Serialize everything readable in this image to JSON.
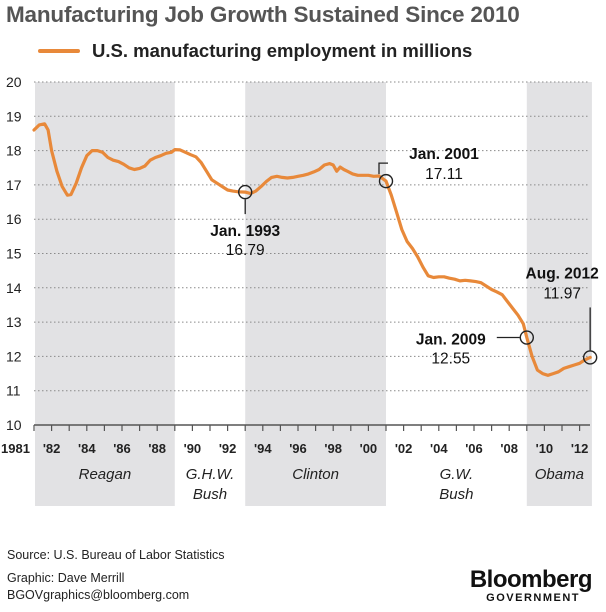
{
  "chart_data": {
    "type": "line",
    "title": "Manufacturing Job Growth Sustained Since 2010",
    "legend": {
      "label": "U.S. manufacturing employment in millions",
      "color": "#e8893a",
      "placement": "top-left"
    },
    "xlabel": "",
    "ylabel": "",
    "ylim": [
      10,
      20
    ],
    "xlim": [
      1981,
      2012.7
    ],
    "yticks": [
      "20",
      "19",
      "18",
      "17",
      "16",
      "15",
      "14",
      "13",
      "12",
      "11",
      "10"
    ],
    "ytick_values": [
      20,
      19,
      18,
      17,
      16,
      15,
      14,
      13,
      12,
      11,
      10
    ],
    "xticks": [
      {
        "year": 1981,
        "label": "1981"
      },
      {
        "year": 1982,
        "label": "'82"
      },
      {
        "year": 1984,
        "label": "'84"
      },
      {
        "year": 1986,
        "label": "'86"
      },
      {
        "year": 1988,
        "label": "'88"
      },
      {
        "year": 1990,
        "label": "'90"
      },
      {
        "year": 1992,
        "label": "'92"
      },
      {
        "year": 1994,
        "label": "'94"
      },
      {
        "year": 1996,
        "label": "'96"
      },
      {
        "year": 1998,
        "label": "'98"
      },
      {
        "year": 2000,
        "label": "'00"
      },
      {
        "year": 2002,
        "label": "'02"
      },
      {
        "year": 2004,
        "label": "'04"
      },
      {
        "year": 2006,
        "label": "'06"
      },
      {
        "year": 2008,
        "label": "'08"
      },
      {
        "year": 2010,
        "label": "'10"
      },
      {
        "year": 2012,
        "label": "'12"
      }
    ],
    "grid": true,
    "presidencies": [
      {
        "name": "Reagan",
        "lines": [
          "Reagan"
        ],
        "start": 1981,
        "end": 1989,
        "shaded": true
      },
      {
        "name": "G.H.W. Bush",
        "lines": [
          "G.H.W.",
          "Bush"
        ],
        "start": 1989,
        "end": 1993,
        "shaded": false
      },
      {
        "name": "Clinton",
        "lines": [
          "Clinton"
        ],
        "start": 1993,
        "end": 2001,
        "shaded": true
      },
      {
        "name": "G.W. Bush",
        "lines": [
          "G.W.",
          "Bush"
        ],
        "start": 2001,
        "end": 2009,
        "shaded": false
      },
      {
        "name": "Obama",
        "lines": [
          "Obama"
        ],
        "start": 2009,
        "end": 2012.7,
        "shaded": true
      }
    ],
    "series": [
      {
        "name": "U.S. manufacturing employment in millions",
        "x": [
          1981.0,
          1981.3,
          1981.6,
          1981.8,
          1982.0,
          1982.3,
          1982.6,
          1982.9,
          1983.1,
          1983.4,
          1983.7,
          1984.0,
          1984.3,
          1984.6,
          1984.9,
          1985.2,
          1985.5,
          1985.8,
          1986.1,
          1986.4,
          1986.7,
          1987.0,
          1987.3,
          1987.6,
          1987.9,
          1988.2,
          1988.5,
          1988.8,
          1989.0,
          1989.3,
          1989.6,
          1989.9,
          1990.2,
          1990.5,
          1990.8,
          1991.1,
          1991.4,
          1991.7,
          1992.0,
          1992.3,
          1992.6,
          1993.0,
          1993.3,
          1993.6,
          1993.9,
          1994.2,
          1994.5,
          1994.8,
          1995.1,
          1995.4,
          1995.7,
          1996.0,
          1996.3,
          1996.6,
          1996.9,
          1997.2,
          1997.5,
          1997.8,
          1998.0,
          1998.2,
          1998.4,
          1998.6,
          1998.8,
          1999.1,
          1999.4,
          1999.7,
          2000.0,
          2000.3,
          2000.6,
          2001.0,
          2001.3,
          2001.6,
          2001.9,
          2002.2,
          2002.5,
          2002.8,
          2003.1,
          2003.4,
          2003.7,
          2004.0,
          2004.3,
          2004.6,
          2004.9,
          2005.2,
          2005.5,
          2005.8,
          2006.1,
          2006.4,
          2006.7,
          2007.0,
          2007.3,
          2007.6,
          2007.9,
          2008.2,
          2008.5,
          2008.8,
          2009.0,
          2009.3,
          2009.6,
          2009.9,
          2010.2,
          2010.5,
          2010.8,
          2011.1,
          2011.4,
          2011.7,
          2012.0,
          2012.3,
          2012.6
        ],
        "values": [
          18.6,
          18.75,
          18.78,
          18.6,
          18.0,
          17.4,
          16.95,
          16.7,
          16.72,
          17.05,
          17.5,
          17.85,
          18.0,
          18.0,
          17.95,
          17.8,
          17.72,
          17.68,
          17.6,
          17.5,
          17.45,
          17.48,
          17.55,
          17.72,
          17.8,
          17.85,
          17.92,
          17.95,
          18.03,
          18.02,
          17.95,
          17.88,
          17.82,
          17.65,
          17.4,
          17.15,
          17.05,
          16.95,
          16.85,
          16.82,
          16.8,
          16.79,
          16.75,
          16.82,
          16.95,
          17.1,
          17.22,
          17.25,
          17.22,
          17.2,
          17.22,
          17.25,
          17.28,
          17.32,
          17.38,
          17.45,
          17.58,
          17.62,
          17.58,
          17.4,
          17.52,
          17.45,
          17.4,
          17.32,
          17.28,
          17.28,
          17.28,
          17.25,
          17.26,
          17.11,
          16.7,
          16.2,
          15.7,
          15.35,
          15.15,
          14.9,
          14.6,
          14.35,
          14.3,
          14.32,
          14.32,
          14.28,
          14.25,
          14.2,
          14.22,
          14.2,
          14.18,
          14.15,
          14.05,
          13.95,
          13.88,
          13.8,
          13.6,
          13.4,
          13.2,
          12.95,
          12.55,
          12.0,
          11.6,
          11.5,
          11.45,
          11.5,
          11.55,
          11.65,
          11.7,
          11.75,
          11.8,
          11.9,
          11.97
        ]
      }
    ],
    "annotations": [
      {
        "id": "jan-1993",
        "label": "Jan. 1993",
        "value_text": "16.79",
        "x": 1993.0,
        "y": 16.79
      },
      {
        "id": "jan-2001",
        "label": "Jan. 2001",
        "value_text": "17.11",
        "x": 2001.0,
        "y": 17.11
      },
      {
        "id": "jan-2009",
        "label": "Jan. 2009",
        "value_text": "12.55",
        "x": 2009.0,
        "y": 12.55
      },
      {
        "id": "aug-2012",
        "label": "Aug. 2012",
        "value_text": "11.97",
        "x": 2012.6,
        "y": 11.97
      }
    ]
  },
  "footer": {
    "source": "Source: U.S. Bureau of Labor Statistics",
    "graphic": "Graphic: Dave Merrill",
    "email": "BGOVgraphics@bloomberg.com"
  },
  "logo": {
    "main": "Bloomberg",
    "sub": "GOVERNMENT"
  },
  "colors": {
    "line": "#e8893a",
    "shade": "#e2e2e4",
    "title": "#555555"
  }
}
